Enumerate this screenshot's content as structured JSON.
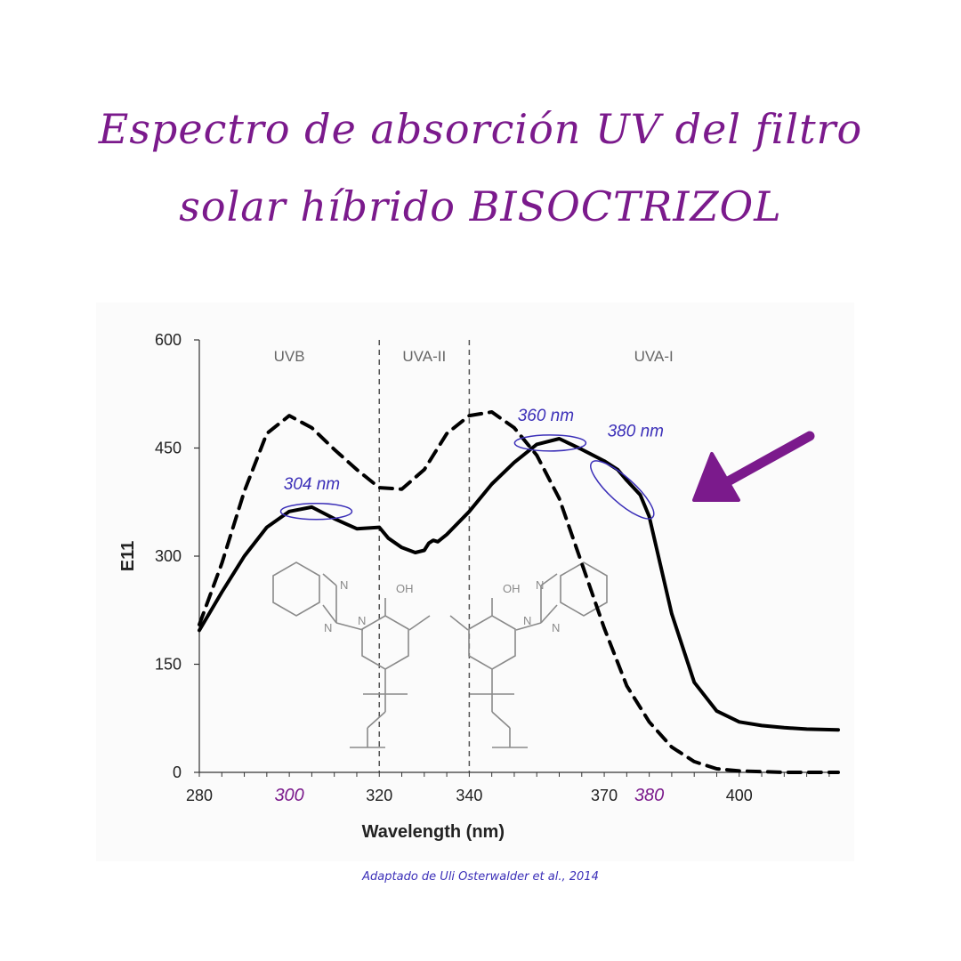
{
  "title": {
    "line1": "Espectro de absorción UV del filtro",
    "line2": "solar híbrido BISOCTRIZOL"
  },
  "citation": "Adaptado de Uli Osterwalder et al., 2014",
  "colors": {
    "title": "#7b1a8c",
    "annotation": "#3b2fb8",
    "arrow": "#7b1a8c",
    "curve": "#000000",
    "molecule": "#8a8a8a"
  },
  "chart_data": {
    "type": "line",
    "xlabel": "Wavelength (nm)",
    "ylabel": "E11",
    "ylim": [
      0,
      600
    ],
    "xlim": [
      280,
      422
    ],
    "grid": false,
    "yticks": [
      0,
      150,
      300,
      450,
      600
    ],
    "xticks": [
      {
        "value": 280,
        "label": "280",
        "highlight": false
      },
      {
        "value": 300,
        "label": "300",
        "highlight": true
      },
      {
        "value": 320,
        "label": "320",
        "highlight": false
      },
      {
        "value": 340,
        "label": "340",
        "highlight": false
      },
      {
        "value": 370,
        "label": "370",
        "highlight": false
      },
      {
        "value": 380,
        "label": "380",
        "highlight": true
      },
      {
        "value": 400,
        "label": "400",
        "highlight": false
      }
    ],
    "regions": [
      {
        "label": "UVB",
        "from": 280,
        "to": 320
      },
      {
        "label": "UVA-II",
        "from": 320,
        "to": 340
      },
      {
        "label": "UVA-I",
        "from": 340,
        "to": 422
      }
    ],
    "dividers": [
      320,
      340
    ],
    "series": [
      {
        "style": "solid",
        "x": [
          280,
          285,
          290,
          295,
          300,
          305,
          310,
          315,
          320,
          322,
          325,
          328,
          330,
          331,
          332,
          333,
          335,
          340,
          345,
          350,
          355,
          360,
          365,
          370,
          373,
          375,
          378,
          380,
          385,
          390,
          395,
          400,
          405,
          410,
          415,
          422
        ],
        "y": [
          197,
          250,
          300,
          340,
          362,
          368,
          352,
          338,
          340,
          325,
          312,
          305,
          308,
          318,
          322,
          320,
          330,
          362,
          400,
          430,
          455,
          463,
          448,
          432,
          420,
          405,
          385,
          355,
          220,
          125,
          85,
          70,
          65,
          62,
          60,
          59
        ]
      },
      {
        "style": "dashed",
        "x": [
          280,
          285,
          290,
          295,
          300,
          305,
          310,
          315,
          320,
          325,
          330,
          335,
          340,
          345,
          350,
          355,
          360,
          365,
          370,
          375,
          380,
          385,
          390,
          395,
          400,
          405,
          410,
          415,
          422
        ],
        "y": [
          205,
          290,
          390,
          470,
          495,
          478,
          448,
          420,
          395,
          393,
          420,
          470,
          495,
          500,
          478,
          440,
          380,
          290,
          200,
          120,
          70,
          35,
          15,
          5,
          2,
          1,
          0,
          0,
          0
        ]
      }
    ],
    "annotations": [
      {
        "label": "304 nm",
        "x": 306,
        "y": 362
      },
      {
        "label": "360 nm",
        "x": 358,
        "y": 457
      },
      {
        "label": "380 nm",
        "x": 374,
        "y": 392
      }
    ]
  }
}
